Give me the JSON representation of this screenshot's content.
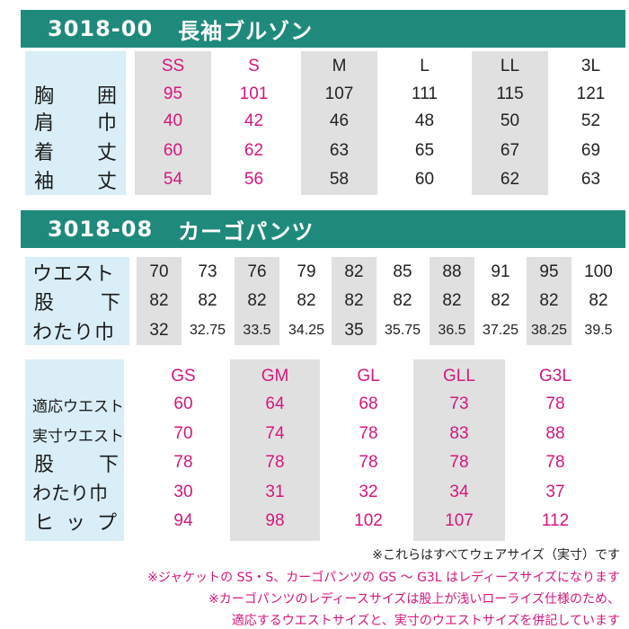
{
  "section1": {
    "code": "3018-00",
    "name": "長袖ブルゾン",
    "sizes": [
      "SS",
      "S",
      "M",
      "L",
      "LL",
      "3L"
    ],
    "rows": [
      {
        "label": [
          "胸",
          "囲"
        ],
        "values": [
          "95",
          "101",
          "107",
          "111",
          "115",
          "121"
        ]
      },
      {
        "label": [
          "肩",
          "巾"
        ],
        "values": [
          "40",
          "42",
          "46",
          "48",
          "50",
          "52"
        ]
      },
      {
        "label": [
          "着",
          "丈"
        ],
        "values": [
          "60",
          "62",
          "63",
          "65",
          "67",
          "69"
        ]
      },
      {
        "label": [
          "袖",
          "丈"
        ],
        "values": [
          "54",
          "56",
          "58",
          "60",
          "62",
          "63"
        ]
      }
    ]
  },
  "section2": {
    "code": "3018-08",
    "name": "カーゴパンツ",
    "rows": [
      {
        "label": [
          "ウエスト"
        ],
        "values": [
          "70",
          "73",
          "76",
          "79",
          "82",
          "85",
          "88",
          "91",
          "95",
          "100"
        ]
      },
      {
        "label": [
          "股",
          "下"
        ],
        "values": [
          "82",
          "82",
          "82",
          "82",
          "82",
          "82",
          "82",
          "82",
          "82",
          "82"
        ]
      },
      {
        "label": [
          "わたり巾"
        ],
        "values": [
          "32",
          "32.75",
          "33.5",
          "34.25",
          "35",
          "35.75",
          "36.5",
          "37.25",
          "38.25",
          "39.5"
        ]
      }
    ]
  },
  "section3": {
    "sizes": [
      "GS",
      "GM",
      "GL",
      "GLL",
      "G3L"
    ],
    "rows": [
      {
        "label": [
          "適応ウエスト"
        ],
        "values": [
          "60",
          "64",
          "68",
          "73",
          "78"
        ]
      },
      {
        "label": [
          "実寸ウエスト"
        ],
        "values": [
          "70",
          "74",
          "78",
          "83",
          "88"
        ]
      },
      {
        "label": [
          "股",
          "下"
        ],
        "values": [
          "78",
          "78",
          "78",
          "78",
          "78"
        ]
      },
      {
        "label": [
          "わたり巾"
        ],
        "values": [
          "30",
          "31",
          "32",
          "34",
          "37"
        ]
      },
      {
        "label": [
          "ヒ",
          "ッ",
          "プ"
        ],
        "values": [
          "94",
          "98",
          "102",
          "107",
          "112"
        ]
      }
    ]
  },
  "notes": [
    "※これらはすべてウェアサイズ（実寸）です",
    "※ジャケットの SS・S、カーゴパンツの GS ～ G3L はレディースサイズになります",
    "※カーゴパンツのレディースサイズは股上が浅いローライズ仕様のため、",
    "適応するウエストサイズと、実寸のウエストサイズを併記しています"
  ],
  "colors": {
    "header": "#1f8a7c",
    "label_bg": "#d9eef7",
    "stripe": "#e0e0e0",
    "pink": "#d4177e"
  }
}
